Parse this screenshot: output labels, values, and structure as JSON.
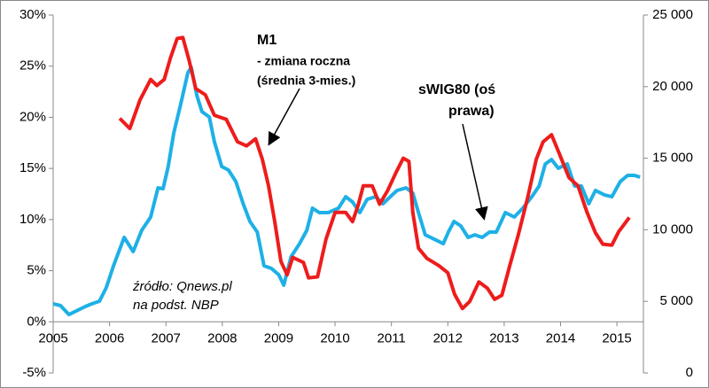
{
  "chart_data": {
    "type": "line",
    "annotations": [
      "M1",
      "- zmiana roczna",
      "(średnia 3-mies.)",
      "sWIG80 (oś",
      "prawa)",
      "źródło: Qnews.pl",
      "na podst. NBP"
    ],
    "xlim": [
      2005,
      2015.47
    ],
    "xticks": [
      2005,
      2006,
      2007,
      2008,
      2009,
      2010,
      2011,
      2012,
      2013,
      2014,
      2015
    ],
    "ylim": [
      -5,
      30
    ],
    "yticks": [
      {
        "value": -5,
        "label": "-5%"
      },
      {
        "value": 0,
        "label": "0%"
      },
      {
        "value": 5,
        "label": "5%"
      },
      {
        "value": 10,
        "label": "10%"
      },
      {
        "value": 15,
        "label": "15%"
      },
      {
        "value": 20,
        "label": "20%"
      },
      {
        "value": 25,
        "label": "25%"
      },
      {
        "value": 30,
        "label": "30%"
      }
    ],
    "y2lim": [
      0,
      25000
    ],
    "y2ticks": [
      0,
      {
        "value": 5000,
        "label": "5 000"
      },
      {
        "value": 10000,
        "label": "10 000"
      },
      {
        "value": 15000,
        "label": "15 000"
      },
      {
        "value": 20000,
        "label": "20 000"
      },
      {
        "value": 25000,
        "label": "25 000"
      }
    ],
    "series": [
      {
        "name": "M1",
        "color": "#ee1c1c",
        "x": [
          2006.18,
          2006.36,
          2006.54,
          2006.73,
          2006.84,
          2006.97,
          2007.08,
          2007.2,
          2007.3,
          2007.41,
          2007.53,
          2007.7,
          2007.86,
          2008.07,
          2008.27,
          2008.43,
          2008.59,
          2008.71,
          2008.82,
          2008.93,
          2009.04,
          2009.15,
          2009.25,
          2009.44,
          2009.53,
          2009.69,
          2009.84,
          2010.0,
          2010.19,
          2010.31,
          2010.41,
          2010.5,
          2010.66,
          2010.79,
          2010.93,
          2011.08,
          2011.21,
          2011.31,
          2011.38,
          2011.48,
          2011.63,
          2011.84,
          2012.0,
          2012.12,
          2012.26,
          2012.39,
          2012.55,
          2012.7,
          2012.83,
          2012.96,
          2013.1,
          2013.25,
          2013.41,
          2013.57,
          2013.69,
          2013.84,
          2013.96,
          2014.15,
          2014.31,
          2014.47,
          2014.62,
          2014.75,
          2014.91,
          2015.03,
          2015.22
        ],
        "values": [
          19.9,
          18.9,
          21.7,
          23.7,
          23.1,
          23.7,
          25.8,
          27.7,
          27.8,
          25.6,
          22.8,
          22.2,
          20.2,
          19.8,
          17.6,
          17.2,
          17.9,
          15.9,
          13.3,
          9.8,
          5.9,
          4.6,
          6.3,
          5.8,
          4.3,
          4.4,
          8.1,
          10.7,
          10.7,
          9.8,
          11.4,
          13.3,
          13.3,
          11.5,
          12.8,
          14.6,
          16.0,
          15.7,
          10.7,
          7.2,
          6.2,
          5.5,
          4.8,
          2.7,
          1.3,
          2.0,
          3.9,
          3.3,
          2.2,
          2.6,
          5.5,
          8.5,
          12.0,
          15.9,
          17.6,
          18.3,
          16.7,
          14.1,
          13.3,
          10.7,
          8.7,
          7.6,
          7.5,
          8.8,
          10.2
        ]
      },
      {
        "name": "sWIG80",
        "color": "#1eb0e6",
        "axis": "y2",
        "x": [
          2005.0,
          2005.13,
          2005.28,
          2005.44,
          2005.57,
          2005.69,
          2005.82,
          2005.94,
          2006.07,
          2006.26,
          2006.42,
          2006.57,
          2006.73,
          2006.86,
          2006.95,
          2007.04,
          2007.14,
          2007.26,
          2007.39,
          2007.45,
          2007.55,
          2007.64,
          2007.77,
          2007.86,
          2007.99,
          2008.11,
          2008.24,
          2008.37,
          2008.49,
          2008.62,
          2008.74,
          2008.87,
          2009.0,
          2009.09,
          2009.22,
          2009.37,
          2009.5,
          2009.6,
          2009.72,
          2009.88,
          2010.06,
          2010.19,
          2010.31,
          2010.44,
          2010.57,
          2010.72,
          2010.85,
          2010.98,
          2011.1,
          2011.26,
          2011.38,
          2011.48,
          2011.6,
          2011.76,
          2011.92,
          2012.01,
          2012.11,
          2012.23,
          2012.36,
          2012.48,
          2012.61,
          2012.74,
          2012.86,
          2013.02,
          2013.18,
          2013.33,
          2013.49,
          2013.62,
          2013.73,
          2013.84,
          2013.96,
          2014.12,
          2014.25,
          2014.37,
          2014.5,
          2014.62,
          2014.78,
          2014.91,
          2015.06,
          2015.19,
          2015.31,
          2015.41
        ],
        "values": [
          4830,
          4700,
          4080,
          4390,
          4640,
          4830,
          5010,
          5940,
          7490,
          9470,
          8480,
          9960,
          10890,
          12930,
          12870,
          14420,
          16770,
          18750,
          20980,
          21350,
          19370,
          18250,
          17880,
          16150,
          14420,
          14170,
          13370,
          11820,
          10580,
          9840,
          7490,
          7300,
          6870,
          6130,
          8110,
          9030,
          9960,
          11510,
          11200,
          11200,
          11510,
          12310,
          11940,
          11200,
          12130,
          12310,
          11820,
          12310,
          12750,
          12930,
          12560,
          11200,
          9650,
          9340,
          9030,
          9840,
          10580,
          10270,
          9470,
          9650,
          9470,
          9840,
          9840,
          11200,
          10890,
          11510,
          12310,
          13060,
          14600,
          14910,
          14300,
          14600,
          13060,
          13060,
          11820,
          12750,
          12430,
          12310,
          13370,
          13800,
          13800,
          13680
        ]
      }
    ]
  }
}
